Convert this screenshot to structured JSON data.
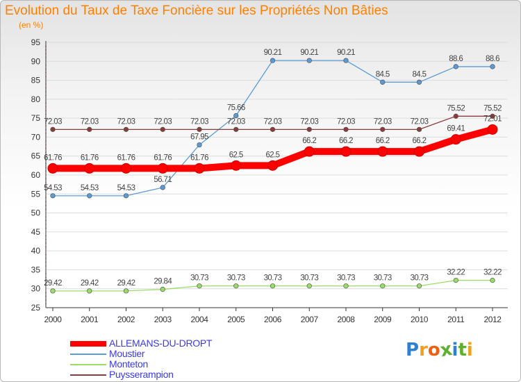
{
  "title": "Evolution du Taux de Taxe Foncière sur les Propriétés Non Bâties",
  "unit": "(en %)",
  "brand": "Proxiti",
  "colors": {
    "title": "#ff8000",
    "axis_text": "#333333",
    "grid": "#dcdcdc",
    "legend_text": "#3a3ae6"
  },
  "chart_data": {
    "type": "line",
    "x": [
      "2000",
      "2001",
      "2002",
      "2003",
      "2004",
      "2005",
      "2006",
      "2007",
      "2008",
      "2009",
      "2010",
      "2011",
      "2012"
    ],
    "ylim": [
      25,
      95
    ],
    "yticks": [
      25,
      30,
      35,
      40,
      45,
      50,
      55,
      60,
      65,
      70,
      75,
      80,
      85,
      90,
      95
    ],
    "grid": "horizontal",
    "legend_position": "bottom-left",
    "series": [
      {
        "name": "ALLEMANS-DU-DROPT",
        "color": "#ff0000",
        "style": "thick",
        "values": [
          61.76,
          61.76,
          61.76,
          61.76,
          61.76,
          62.5,
          62.5,
          66.2,
          66.2,
          66.2,
          66.2,
          69.41,
          72.01
        ],
        "labels": [
          "61.76",
          "61.76",
          "61.76",
          "61.76",
          "61.76",
          "62.5",
          "62.5",
          "66.2",
          "66.2",
          "66.2",
          "66.2",
          "69.41",
          "72.01"
        ]
      },
      {
        "name": "Moustier",
        "color": "#5b9bd5",
        "style": "thin",
        "values": [
          54.53,
          54.53,
          54.53,
          56.71,
          67.95,
          75.66,
          90.21,
          90.21,
          90.21,
          84.5,
          84.5,
          88.6,
          88.6
        ],
        "labels": [
          "54.53",
          "54.53",
          "54.53",
          "56.71",
          "67.95",
          "75.66",
          "90.21",
          "90.21",
          "90.21",
          "84.5",
          "84.5",
          "88.6",
          "88.6"
        ]
      },
      {
        "name": "Monteton",
        "color": "#99dd66",
        "style": "thin",
        "values": [
          29.42,
          29.42,
          29.42,
          29.84,
          30.73,
          30.73,
          30.73,
          30.73,
          30.73,
          30.73,
          30.73,
          32.22,
          32.22
        ],
        "labels": [
          "29.42",
          "29.42",
          "29.42",
          "29.84",
          "30.73",
          "30.73",
          "30.73",
          "30.73",
          "30.73",
          "30.73",
          "30.73",
          "32.22",
          "32.22"
        ]
      },
      {
        "name": "Puysserampion",
        "color": "#8b3a3a",
        "style": "thin",
        "values": [
          72.03,
          72.03,
          72.03,
          72.03,
          72.03,
          72.03,
          72.03,
          72.03,
          72.03,
          72.03,
          72.03,
          75.52,
          75.52
        ],
        "labels": [
          "72.03",
          "72.03",
          "72.03",
          "72.03",
          "72.03",
          "72.03",
          "72.03",
          "72.03",
          "72.03",
          "72.03",
          "72.03",
          "75.52",
          "75.52"
        ]
      }
    ]
  }
}
